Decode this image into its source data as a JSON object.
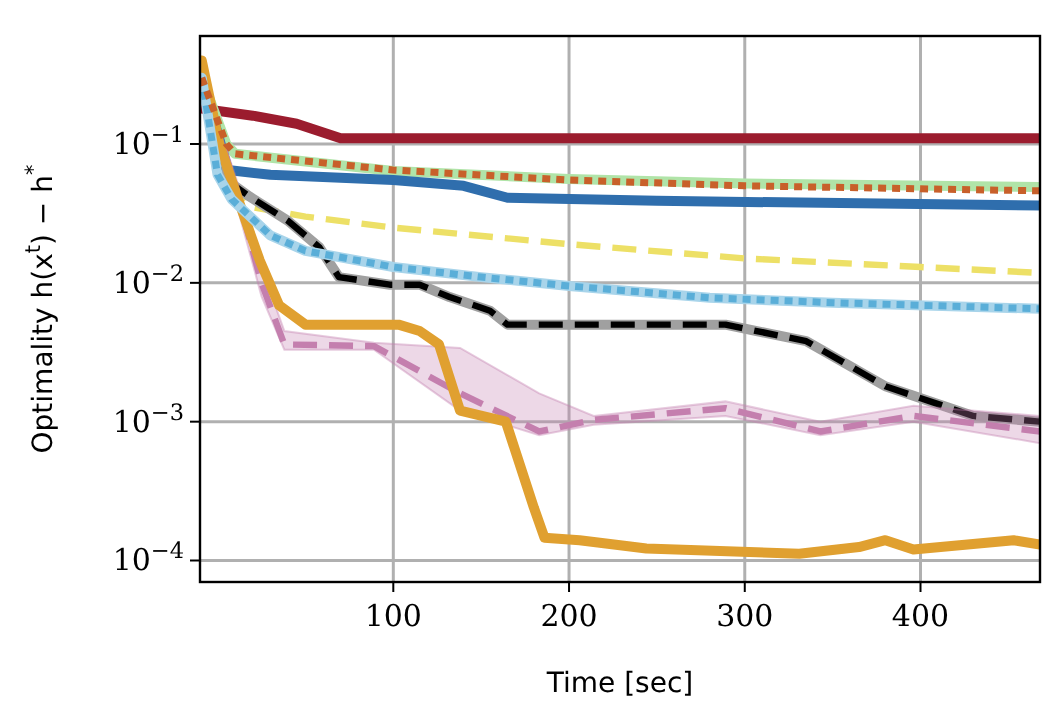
{
  "chart_data": {
    "type": "line",
    "xlabel": "Time [sec]",
    "ylabel": "Optimality  h(x$^{t}$) − h$^{*}$",
    "log": "y",
    "grid": true,
    "xlim": [
      -10,
      468
    ],
    "xticks": [
      100,
      200,
      300,
      400
    ],
    "ylim": [
      7e-05,
      0.6
    ],
    "yticks": [
      {
        "value": 0.0001,
        "label": "10$^{−4}$"
      },
      {
        "value": 0.001,
        "label": "10$^{−3}$"
      },
      {
        "value": 0.01,
        "label": "10$^{−2}$"
      },
      {
        "value": 0.1,
        "label": "10$^{−1}$"
      }
    ],
    "series": [
      {
        "color": "#9b1c2e",
        "line_style": "solid",
        "x": [
          -9,
          20,
          45,
          70,
          468
        ],
        "values": [
          0.18,
          0.16,
          0.14,
          0.11,
          0.11
        ]
      },
      {
        "color": "#b0e4a8",
        "line_style": "solid",
        "x": [
          -9,
          5,
          10,
          100,
          200,
          300,
          468
        ],
        "values": [
          0.3,
          0.1,
          0.085,
          0.064,
          0.056,
          0.052,
          0.049
        ]
      },
      {
        "color": "#2f6ead",
        "line_style": "solid",
        "x": [
          -9,
          0,
          6,
          30,
          100,
          140,
          165,
          250,
          468
        ],
        "values": [
          0.3,
          0.12,
          0.065,
          0.06,
          0.055,
          0.05,
          0.041,
          0.039,
          0.036
        ]
      },
      {
        "color": "#ede066",
        "line_style": "dashed",
        "x": [
          -9,
          5,
          20,
          50,
          100,
          200,
          300,
          400,
          468
        ],
        "values": [
          0.3,
          0.06,
          0.035,
          0.03,
          0.025,
          0.019,
          0.015,
          0.013,
          0.0118
        ]
      },
      {
        "color": "#a0a0a0",
        "line_style": "solid",
        "x": [
          -9,
          1,
          18,
          40,
          58,
          69,
          98,
          115,
          132,
          155,
          165,
          289,
          335,
          380,
          430,
          468
        ],
        "values": [
          0.3,
          0.06,
          0.042,
          0.028,
          0.018,
          0.011,
          0.0097,
          0.0097,
          0.0079,
          0.0063,
          0.005,
          0.005,
          0.0038,
          0.0018,
          0.0011,
          0.001
        ]
      },
      {
        "color": "#000000",
        "line_style": "dashed",
        "x": [
          -9,
          1,
          18,
          40,
          58,
          69,
          98,
          115,
          132,
          155,
          165,
          289,
          335,
          380,
          430,
          468
        ],
        "values": [
          0.3,
          0.06,
          0.042,
          0.028,
          0.018,
          0.011,
          0.0097,
          0.0097,
          0.0079,
          0.0063,
          0.005,
          0.005,
          0.0038,
          0.0018,
          0.0011,
          0.001
        ]
      },
      {
        "color": "#c47fae",
        "line_style": "dashed",
        "x": [
          -9,
          10,
          25,
          38,
          89,
          138,
          183,
          214,
          289,
          343,
          396,
          468
        ],
        "values": [
          0.3,
          0.05,
          0.01,
          0.0036,
          0.0035,
          0.0016,
          0.00085,
          0.00103,
          0.00125,
          0.00085,
          0.0011,
          0.00085
        ],
        "lower": [
          0.3,
          0.04,
          0.008,
          0.0033,
          0.0033,
          0.0012,
          0.0008,
          0.00095,
          0.0011,
          0.0008,
          0.001,
          0.0007
        ],
        "upper": [
          0.3,
          0.06,
          0.013,
          0.0045,
          0.0037,
          0.0034,
          0.0016,
          0.0011,
          0.0014,
          0.001,
          0.0013,
          0.0011
        ]
      },
      {
        "color": "#e0a030",
        "line_style": "solid",
        "x": [
          -9,
          1,
          12,
          24,
          35,
          50,
          103,
          115,
          126,
          138,
          164,
          180,
          186,
          206,
          244,
          331,
          365,
          380,
          396,
          453,
          468
        ],
        "values": [
          0.4,
          0.1,
          0.039,
          0.0145,
          0.0069,
          0.005,
          0.005,
          0.0045,
          0.0036,
          0.0012,
          0.001,
          0.00024,
          0.000146,
          0.00014,
          0.000122,
          0.000112,
          0.000125,
          0.00014,
          0.00012,
          0.00014,
          0.00013
        ]
      },
      {
        "color": "#a8d4ea",
        "line_style": "solid",
        "x": [
          -9,
          0,
          8,
          30,
          50,
          100,
          150,
          200,
          280,
          350,
          468
        ],
        "values": [
          0.3,
          0.06,
          0.04,
          0.022,
          0.017,
          0.013,
          0.011,
          0.0095,
          0.0078,
          0.0072,
          0.0065
        ]
      },
      {
        "color": "#5aaed8",
        "line_style": "dotted",
        "x": [
          -9,
          0,
          8,
          30,
          50,
          100,
          150,
          200,
          280,
          350,
          468
        ],
        "values": [
          0.3,
          0.06,
          0.04,
          0.022,
          0.017,
          0.013,
          0.011,
          0.0095,
          0.0078,
          0.0072,
          0.0065
        ]
      },
      {
        "color": "#c8602a",
        "line_style": "dotted",
        "x": [
          -9,
          5,
          10,
          100,
          200,
          300,
          468
        ],
        "values": [
          0.3,
          0.1,
          0.085,
          0.065,
          0.055,
          0.05,
          0.046
        ]
      }
    ]
  }
}
